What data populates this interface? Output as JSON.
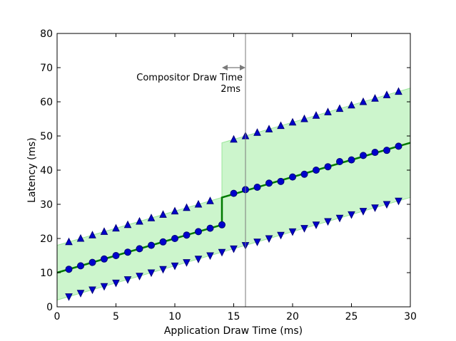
{
  "chart_data": {
    "type": "line",
    "xlabel": "Application Draw Time (ms)",
    "ylabel": "Latency (ms)",
    "xlim": [
      0,
      30
    ],
    "ylim": [
      0,
      80
    ],
    "xticks": [
      0,
      5,
      10,
      15,
      20,
      25,
      30
    ],
    "yticks": [
      0,
      10,
      20,
      30,
      40,
      50,
      60,
      70,
      80
    ],
    "grid": false,
    "annotation": {
      "line1": "Compositor Draw Time",
      "line2": "2ms",
      "vline_x": 16,
      "arrow_from_x": 14,
      "arrow_to_x": 16
    },
    "band": {
      "x": [
        0,
        14,
        14,
        30
      ],
      "lower": [
        2,
        16,
        16,
        32
      ],
      "upper": [
        18,
        32,
        48,
        64
      ]
    },
    "model_line": {
      "x": [
        0,
        14,
        14,
        30
      ],
      "y": [
        10,
        24,
        32,
        48
      ]
    },
    "series": [
      {
        "marker": "circle",
        "x": [
          1,
          2,
          3,
          4,
          5,
          6,
          7,
          8,
          9,
          10,
          11,
          12,
          13,
          14,
          15,
          16,
          17,
          18,
          19,
          20,
          21,
          22,
          23,
          24,
          25,
          26,
          27,
          28,
          29
        ],
        "y": [
          11,
          12,
          13,
          14,
          15,
          16,
          17,
          18,
          19,
          20,
          21,
          22,
          23,
          24,
          33.2,
          34.3,
          35,
          36.2,
          36.7,
          38,
          38.8,
          40,
          41,
          42.5,
          43,
          44.3,
          45.2,
          45.8,
          47
        ]
      },
      {
        "marker": "triangle-up",
        "x": [
          1,
          2,
          3,
          4,
          5,
          6,
          7,
          8,
          9,
          10,
          11,
          12,
          13,
          15,
          16,
          17,
          18,
          19,
          20,
          21,
          22,
          23,
          24,
          25,
          26,
          27,
          28,
          29
        ],
        "y": [
          19,
          20,
          21,
          22,
          23,
          24,
          25,
          26,
          27,
          28,
          29,
          30,
          31,
          49,
          50,
          51,
          52,
          53,
          54,
          55,
          56,
          57,
          58,
          59,
          60,
          61,
          62,
          63
        ]
      },
      {
        "marker": "triangle-down",
        "x": [
          1,
          2,
          3,
          4,
          5,
          6,
          7,
          8,
          9,
          10,
          11,
          12,
          13,
          14,
          15,
          16,
          17,
          18,
          19,
          20,
          21,
          22,
          23,
          24,
          25,
          26,
          27,
          28,
          29
        ],
        "y": [
          3,
          4,
          5,
          6,
          7,
          8,
          9,
          10,
          11,
          12,
          13,
          14,
          15,
          16,
          17,
          18,
          19,
          20,
          21,
          22,
          23,
          24,
          25,
          26,
          27,
          28,
          29,
          30,
          31
        ]
      }
    ],
    "colors": {
      "band_fill": "#ccf5cc",
      "band_edge": "#99e699",
      "model_line": "#007a00",
      "marker_fill": "#0000cc",
      "marker_edge": "#00007a",
      "annotation_line": "#7a7a7a"
    }
  }
}
